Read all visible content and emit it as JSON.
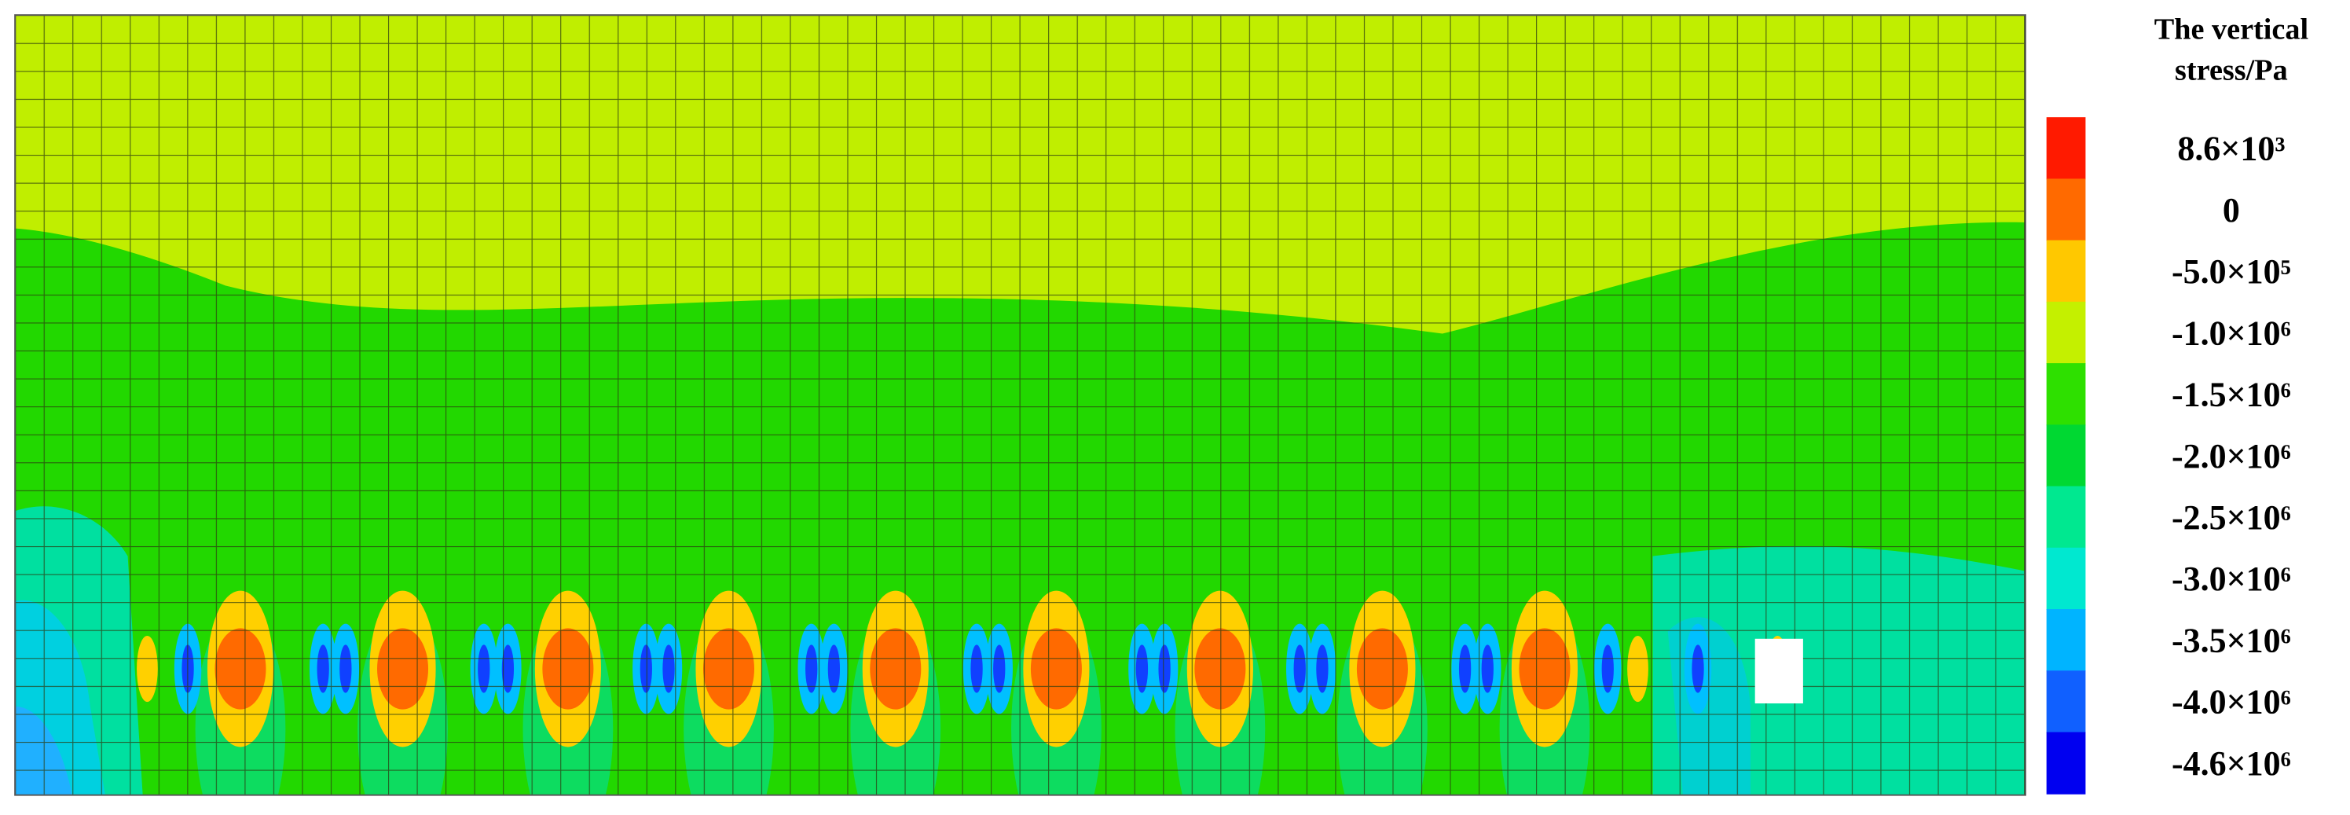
{
  "legend": {
    "title_lines": [
      "The vertical",
      "stress/Pa"
    ],
    "items": [
      {
        "label": "8.6×10³",
        "color": "#ff1a00"
      },
      {
        "label": "0",
        "color": "#ff6a00"
      },
      {
        "label": "-5.0×10⁵",
        "color": "#ffc800"
      },
      {
        "label": "-1.0×10⁶",
        "color": "#c4f000"
      },
      {
        "label": "-1.5×10⁶",
        "color": "#2ee000"
      },
      {
        "label": "-2.0×10⁶",
        "color": "#00d832"
      },
      {
        "label": "-2.5×10⁶",
        "color": "#00e890"
      },
      {
        "label": "-3.0×10⁶",
        "color": "#00e8d0"
      },
      {
        "label": "-3.5×10⁶",
        "color": "#00b4ff"
      },
      {
        "label": "-4.0×10⁶",
        "color": "#1060ff"
      },
      {
        "label": "-4.6×10⁶",
        "color": "#0000f0"
      }
    ]
  }
}
